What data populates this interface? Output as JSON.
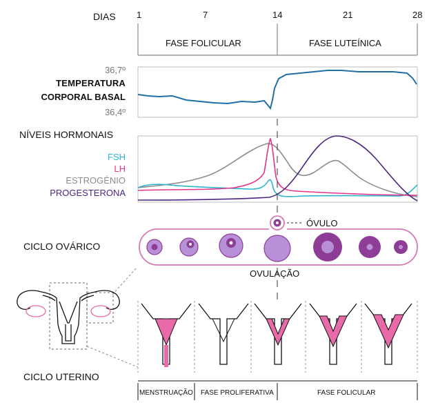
{
  "header": {
    "days_label": "DIAS",
    "day_ticks": [
      "1",
      "7",
      "14",
      "21",
      "28"
    ],
    "phases": [
      "FASE FOLICULAR",
      "FASE LUTEÍNICA"
    ]
  },
  "temperature": {
    "label_line1": "TEMPERATURA",
    "label_line2": "CORPORAL BASAL",
    "high": "36,7º",
    "low": "36,4º"
  },
  "hormones": {
    "title": "NÍVEIS HORMONAIS",
    "legend": [
      {
        "name": "FSH",
        "color": "#2bb3d0"
      },
      {
        "name": "LH",
        "color": "#e0368a"
      },
      {
        "name": "ESTROGÉNIO",
        "color": "#8c8c8c"
      },
      {
        "name": "PROGESTERONA",
        "color": "#4b2580"
      }
    ]
  },
  "ovarian": {
    "label": "CICLO OVÁRICO",
    "ovum_label": "ÓVULO",
    "ovulation_label": "OVULAÇÃO",
    "colors": {
      "outer": "#b790d8",
      "inner": "#8d3d95",
      "ring": "#d977b5"
    }
  },
  "uterine": {
    "label": "CICLO UTERINO",
    "phases": [
      "MENSTRUAÇÃO",
      "FASE PROLIFERATIVA",
      "FASE FOLICULAR"
    ],
    "colors": {
      "endometrium": "#e86aa8"
    }
  },
  "colors": {
    "temperature_line": "#1f6fa5",
    "frame": "#888888"
  }
}
